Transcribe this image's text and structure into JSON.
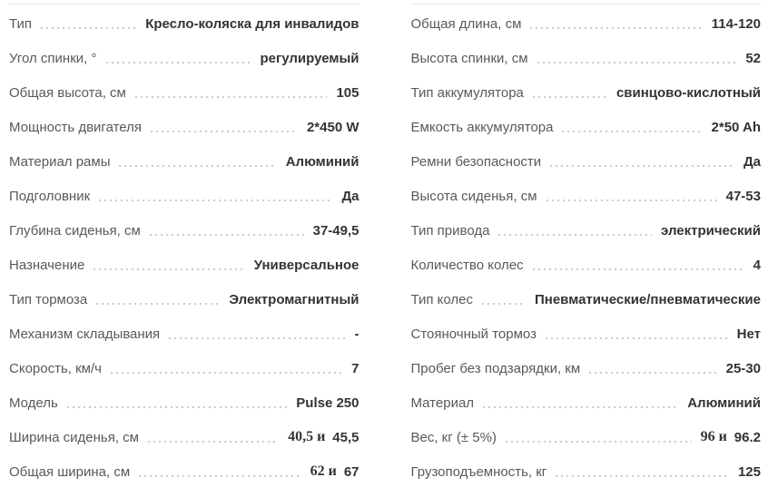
{
  "spec_table": {
    "colors": {
      "label_text": "#595959",
      "value_text": "#333333",
      "leader_dots": "#cccccc",
      "top_border": "#e4e4e4",
      "background": "#ffffff"
    },
    "columns": [
      {
        "rows": [
          {
            "label": "Тип",
            "value": "Кресло-коляска для инвалидов"
          },
          {
            "label": "Угол спинки, °",
            "value": "регулируемый"
          },
          {
            "label": "Общая высота, см",
            "value": "105"
          },
          {
            "label": "Мощность двигателя",
            "value": "2*450 W"
          },
          {
            "label": "Материал рамы",
            "value": "Алюминий"
          },
          {
            "label": "Подголовник",
            "value": "Да"
          },
          {
            "label": "Глубина сиденья, см",
            "value": "37-49,5"
          },
          {
            "label": "Назначение",
            "value": "Универсальное"
          },
          {
            "label": "Тип тормоза",
            "value": "Электромагнитный"
          },
          {
            "label": "Механизм складывания",
            "value": "-"
          },
          {
            "label": "Скорость, км/ч",
            "value": "7"
          },
          {
            "label": "Модель",
            "value": "Pulse 250"
          },
          {
            "label": "Ширина сиденья, см",
            "value_serif": "40,5 и",
            "value": "45,5"
          },
          {
            "label": "Общая ширина, см",
            "value_serif": "62 и",
            "value": "67"
          }
        ]
      },
      {
        "rows": [
          {
            "label": "Общая длина, см",
            "value": "114-120"
          },
          {
            "label": "Высота спинки, см",
            "value": "52"
          },
          {
            "label": "Тип аккумулятора",
            "value": "свинцово-кислотный"
          },
          {
            "label": "Емкость аккумулятора",
            "value": "2*50 Ah"
          },
          {
            "label": "Ремни безопасности",
            "value": "Да"
          },
          {
            "label": "Высота сиденья, см",
            "value": "47-53"
          },
          {
            "label": "Тип привода",
            "value": "электрический"
          },
          {
            "label": "Количество колес",
            "value": "4"
          },
          {
            "label": "Тип колес",
            "value": "Пневматические/пневматические"
          },
          {
            "label": "Стояночный тормоз",
            "value": "Нет"
          },
          {
            "label": "Пробег без подзарядки, км",
            "value": "25-30"
          },
          {
            "label": "Материал",
            "value": "Алюминий"
          },
          {
            "label": "Вес, кг (± 5%)",
            "value_serif": "96 и",
            "value": "96.2"
          },
          {
            "label": "Грузоподъемность, кг",
            "value": "125"
          }
        ]
      }
    ]
  }
}
